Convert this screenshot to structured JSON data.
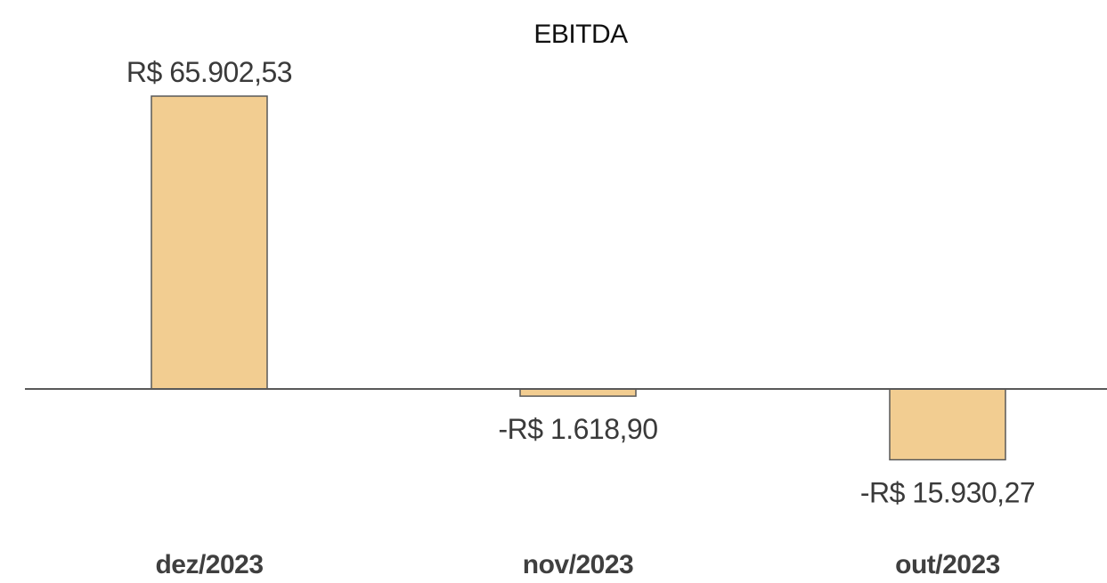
{
  "chart_data": {
    "type": "bar",
    "title": "EBITDA",
    "categories": [
      "dez/2023",
      "nov/2023",
      "out/2023"
    ],
    "values": [
      65902.53,
      -1618.9,
      -15930.27
    ],
    "value_labels": [
      "R$ 65.902,53",
      "-R$ 1.618,90",
      "-R$ 15.930,27"
    ],
    "xlabel": "",
    "ylabel": "",
    "grid": false,
    "legend": "none",
    "colors": {
      "bar_fill": "#f2cd91",
      "bar_stroke": "#595959",
      "axis": "#595959"
    }
  }
}
